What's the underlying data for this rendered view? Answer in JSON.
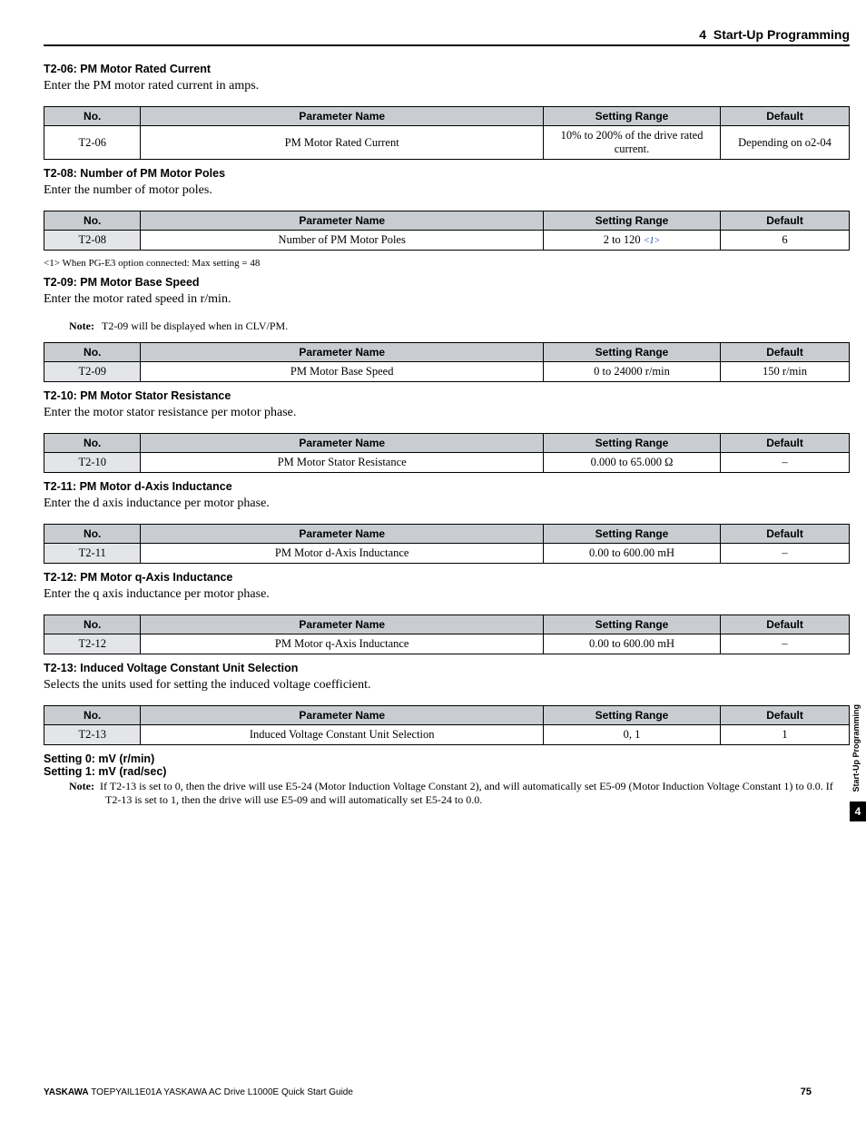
{
  "header": {
    "chapter_num": "4",
    "chapter_title": "Start-Up Programming"
  },
  "columns": {
    "no": "No.",
    "name": "Parameter Name",
    "range": "Setting Range",
    "def": "Default"
  },
  "sections": [
    {
      "heading": "T2-06: PM Motor Rated Current",
      "body": "Enter the PM motor rated current in amps.",
      "row": {
        "no": "T2-06",
        "name": "PM Motor Rated Current",
        "range": "10% to 200% of the drive rated current.",
        "def": "Depending on o2-04"
      }
    },
    {
      "heading": "T2-08: Number of PM Motor Poles",
      "body": "Enter the number of motor poles.",
      "row": {
        "no": "T2-08",
        "name": "Number of PM Motor Poles",
        "range_main": "2 to 120 ",
        "range_ref": "<1>",
        "def": "6"
      },
      "light_no": true,
      "footnote": "<1> When PG-E3 option connected: Max setting = 48"
    },
    {
      "heading": "T2-09: PM Motor Base Speed",
      "body": "Enter the motor rated speed in r/min.",
      "note": "T2-09 will be displayed when in CLV/PM.",
      "row": {
        "no": "T2-09",
        "name": "PM Motor Base Speed",
        "range": "0 to 24000 r/min",
        "def": "150 r/min"
      },
      "light_no": true
    },
    {
      "heading": "T2-10: PM Motor Stator Resistance",
      "body": "Enter the motor stator resistance per motor phase.",
      "row": {
        "no": "T2-10",
        "name": "PM Motor Stator Resistance",
        "range": "0.000 to 65.000 Ω",
        "def": "–"
      },
      "light_no": true
    },
    {
      "heading": "T2-11: PM Motor d-Axis Inductance",
      "body": "Enter the d axis inductance per motor phase.",
      "row": {
        "no": "T2-11",
        "name": "PM Motor d-Axis Inductance",
        "range": "0.00 to 600.00 mH",
        "def": "–"
      },
      "light_no": true
    },
    {
      "heading": "T2-12: PM Motor q-Axis Inductance",
      "body": "Enter the q axis inductance per motor phase.",
      "row": {
        "no": "T2-12",
        "name": "PM Motor q-Axis Inductance",
        "range": "0.00 to 600.00 mH",
        "def": "–"
      },
      "light_no": true
    },
    {
      "heading": "T2-13: Induced Voltage Constant Unit Selection",
      "body": "Selects the units used for setting the induced voltage coefficient.",
      "row": {
        "no": "T2-13",
        "name": "Induced Voltage Constant Unit Selection",
        "range": "0, 1",
        "def": "1"
      },
      "light_no": true
    }
  ],
  "settings": {
    "s0": "Setting 0: mV (r/min)",
    "s1": "Setting 1: mV (rad/sec)",
    "note_label": "Note:",
    "note_text": "If T2-13 is set to 0, then the drive will use E5-24 (Motor Induction Voltage Constant 2), and will automatically set E5-09 (Motor Induction Voltage Constant 1) to 0.0. If T2-13 is set to 1, then the drive will use E5-09 and will automatically set E5-24 to 0.0."
  },
  "footer": {
    "brand": "YASKAWA",
    "doc": " TOEPYAIL1E01A YASKAWA AC Drive L1000E Quick Start Guide",
    "page": "75"
  },
  "sidetab": {
    "label": "Start-Up Programming",
    "num": "4"
  },
  "labels": {
    "note": "Note:"
  }
}
